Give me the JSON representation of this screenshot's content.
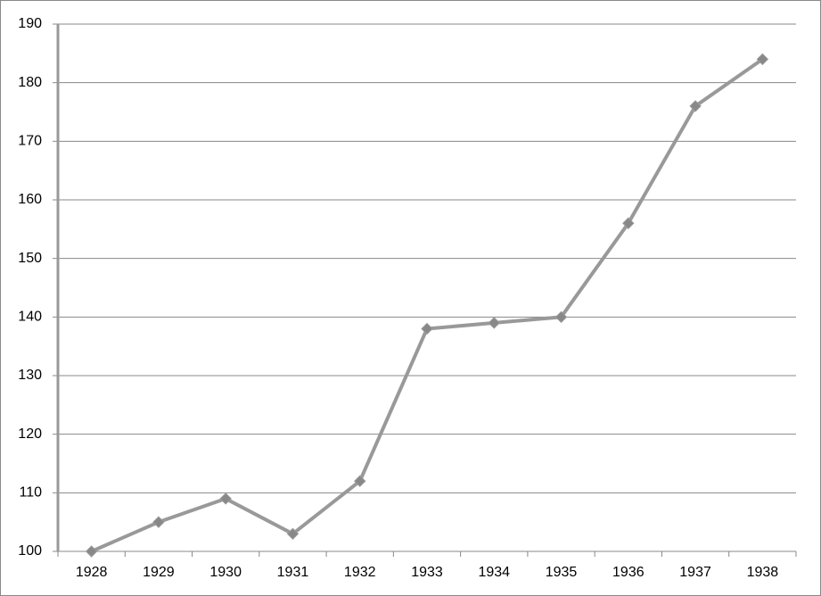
{
  "chart_data": {
    "type": "line",
    "categories": [
      "1928",
      "1929",
      "1930",
      "1931",
      "1932",
      "1933",
      "1934",
      "1935",
      "1936",
      "1937",
      "1938"
    ],
    "values": [
      100,
      105,
      109,
      103,
      112,
      138,
      139,
      140,
      156,
      176,
      184
    ],
    "color": "#999999",
    "ylim": [
      100,
      190
    ],
    "yticks": [
      100,
      110,
      120,
      130,
      140,
      150,
      160,
      170,
      180,
      190
    ],
    "grid": true
  }
}
